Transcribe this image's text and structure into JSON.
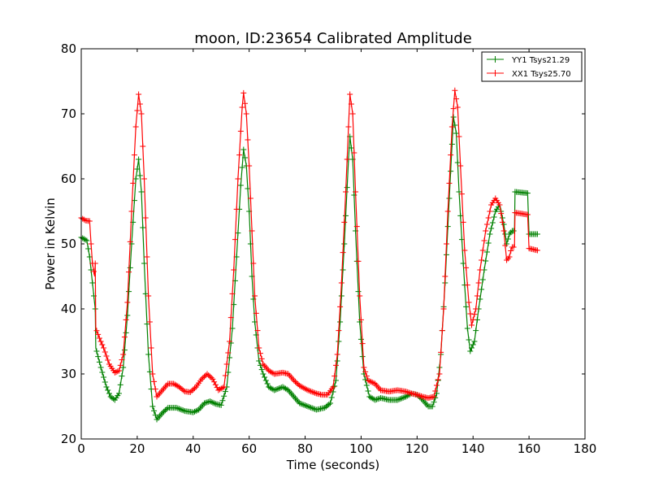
{
  "chart_data": {
    "type": "line",
    "title": "moon, ID:23654 Calibrated Amplitude",
    "xlabel": "Time (seconds)",
    "ylabel": "Power in Kelvin",
    "xlim": [
      0,
      180
    ],
    "ylim": [
      20,
      80
    ],
    "xticks": [
      "0",
      "20",
      "40",
      "60",
      "80",
      "100",
      "120",
      "140",
      "160",
      "180"
    ],
    "yticks": [
      "20",
      "30",
      "40",
      "50",
      "60",
      "70",
      "80"
    ],
    "grid": false,
    "legend_position": "top-right",
    "marker": "+",
    "sample_interval": 0.5,
    "series": [
      {
        "name": "YY1 Tsys21.29",
        "color": "#008000",
        "points": [
          [
            0,
            51
          ],
          [
            2,
            50.5
          ],
          [
            3,
            48
          ],
          [
            4,
            44
          ],
          [
            5,
            40
          ],
          [
            5.2,
            34
          ],
          [
            7,
            31
          ],
          [
            9,
            28
          ],
          [
            10.5,
            26.5
          ],
          [
            12,
            26
          ],
          [
            13.5,
            27
          ],
          [
            15,
            31
          ],
          [
            16.5,
            39
          ],
          [
            18,
            50
          ],
          [
            19.5,
            60
          ],
          [
            20.5,
            63
          ],
          [
            21.5,
            58
          ],
          [
            22.5,
            47
          ],
          [
            24,
            33
          ],
          [
            25.5,
            25
          ],
          [
            27,
            23
          ],
          [
            29,
            24
          ],
          [
            31,
            24.8
          ],
          [
            34,
            24.8
          ],
          [
            37,
            24.3
          ],
          [
            40,
            24.1
          ],
          [
            42,
            24.5
          ],
          [
            44,
            25.5
          ],
          [
            46,
            25.8
          ],
          [
            48,
            25.4
          ],
          [
            50,
            25.2
          ],
          [
            52,
            28
          ],
          [
            54,
            37
          ],
          [
            55.5,
            48
          ],
          [
            57,
            59
          ],
          [
            58,
            64.5
          ],
          [
            59,
            62
          ],
          [
            60,
            55
          ],
          [
            61,
            45
          ],
          [
            62,
            38
          ],
          [
            63.5,
            32
          ],
          [
            65,
            30
          ],
          [
            67,
            28
          ],
          [
            69,
            27.5
          ],
          [
            72,
            28
          ],
          [
            74,
            27.5
          ],
          [
            76,
            26.5
          ],
          [
            78,
            25.5
          ],
          [
            81,
            25
          ],
          [
            84,
            24.5
          ],
          [
            87,
            24.8
          ],
          [
            89,
            25.5
          ],
          [
            91,
            29
          ],
          [
            92.5,
            38
          ],
          [
            94,
            50
          ],
          [
            95.5,
            63
          ],
          [
            96,
            66.5
          ],
          [
            97,
            63
          ],
          [
            98,
            52
          ],
          [
            99.5,
            38
          ],
          [
            101,
            30
          ],
          [
            103,
            26.5
          ],
          [
            105,
            26
          ],
          [
            107,
            26.3
          ],
          [
            110,
            26
          ],
          [
            113,
            26
          ],
          [
            116,
            26.5
          ],
          [
            118,
            27
          ],
          [
            120,
            26.8
          ],
          [
            122,
            26
          ],
          [
            124,
            25
          ],
          [
            125.5,
            25
          ],
          [
            127,
            27
          ],
          [
            128.5,
            33
          ],
          [
            130,
            44
          ],
          [
            131.5,
            57
          ],
          [
            133,
            69.5
          ],
          [
            134,
            67
          ],
          [
            135,
            58
          ],
          [
            136.5,
            47
          ],
          [
            138,
            37
          ],
          [
            139,
            33.5
          ],
          [
            140.5,
            35
          ],
          [
            142,
            40
          ],
          [
            144,
            46
          ],
          [
            146,
            51.5
          ],
          [
            148,
            55
          ],
          [
            149.5,
            56
          ],
          [
            151,
            53
          ],
          [
            152,
            50
          ],
          [
            153,
            51.5
          ],
          [
            154,
            52
          ],
          [
            154.8,
            52
          ],
          [
            155,
            58
          ],
          [
            159.5,
            57.8
          ],
          [
            160,
            51.5
          ],
          [
            163,
            51.5
          ]
        ]
      },
      {
        "name": "XX1 Tsys25.70",
        "color": "#ff0000",
        "points": [
          [
            0,
            54
          ],
          [
            1.5,
            53.6
          ],
          [
            3,
            53.5
          ],
          [
            3.5,
            50
          ],
          [
            4,
            47
          ],
          [
            4.8,
            45
          ],
          [
            5,
            47
          ],
          [
            5.2,
            37
          ],
          [
            6.5,
            35.5
          ],
          [
            8,
            34
          ],
          [
            10,
            31.5
          ],
          [
            12,
            30.2
          ],
          [
            13.5,
            30.5
          ],
          [
            15,
            33
          ],
          [
            16.5,
            41
          ],
          [
            18,
            55
          ],
          [
            19.5,
            68
          ],
          [
            20.5,
            73
          ],
          [
            21.5,
            70
          ],
          [
            22.5,
            60
          ],
          [
            24,
            42
          ],
          [
            25.5,
            30
          ],
          [
            27,
            26.5
          ],
          [
            29,
            27.5
          ],
          [
            31,
            28.5
          ],
          [
            33,
            28.5
          ],
          [
            35,
            28
          ],
          [
            37,
            27.3
          ],
          [
            39,
            27.2
          ],
          [
            41,
            28
          ],
          [
            43,
            29.2
          ],
          [
            45,
            30
          ],
          [
            47,
            29.2
          ],
          [
            49,
            27.5
          ],
          [
            51,
            28
          ],
          [
            53,
            35
          ],
          [
            54.5,
            46
          ],
          [
            56,
            60
          ],
          [
            57.5,
            71
          ],
          [
            58,
            73.2
          ],
          [
            59,
            70
          ],
          [
            60,
            62
          ],
          [
            61,
            52
          ],
          [
            62,
            42
          ],
          [
            63.5,
            34
          ],
          [
            65,
            31.5
          ],
          [
            67,
            30.5
          ],
          [
            69,
            30
          ],
          [
            72,
            30.2
          ],
          [
            74,
            30
          ],
          [
            76,
            29
          ],
          [
            78,
            28.2
          ],
          [
            81,
            27.5
          ],
          [
            84,
            27
          ],
          [
            86,
            26.8
          ],
          [
            88,
            26.8
          ],
          [
            90,
            28
          ],
          [
            91.5,
            33
          ],
          [
            93,
            44
          ],
          [
            94.5,
            58
          ],
          [
            96,
            73
          ],
          [
            97,
            70
          ],
          [
            98,
            58
          ],
          [
            99.5,
            42
          ],
          [
            101,
            31
          ],
          [
            102.5,
            29
          ],
          [
            105,
            28.5
          ],
          [
            107,
            27.5
          ],
          [
            110,
            27.3
          ],
          [
            113,
            27.5
          ],
          [
            116,
            27.3
          ],
          [
            118,
            27
          ],
          [
            120,
            26.8
          ],
          [
            122,
            26.5
          ],
          [
            124,
            26.3
          ],
          [
            126,
            26.5
          ],
          [
            128,
            30
          ],
          [
            129.5,
            40
          ],
          [
            131,
            55
          ],
          [
            132.5,
            68
          ],
          [
            133.5,
            73.6
          ],
          [
            134.5,
            71
          ],
          [
            135.5,
            62
          ],
          [
            137,
            49
          ],
          [
            138.5,
            41
          ],
          [
            139.5,
            37.5
          ],
          [
            141,
            40
          ],
          [
            142.5,
            46
          ],
          [
            144.5,
            52
          ],
          [
            146.5,
            56
          ],
          [
            148,
            57
          ],
          [
            149.5,
            56
          ],
          [
            151,
            52
          ],
          [
            152,
            47.5
          ],
          [
            153,
            48
          ],
          [
            153.8,
            49.5
          ],
          [
            154.8,
            49.5
          ],
          [
            155,
            54.8
          ],
          [
            159.5,
            54.5
          ],
          [
            160,
            49.3
          ],
          [
            163,
            49
          ]
        ]
      }
    ]
  }
}
